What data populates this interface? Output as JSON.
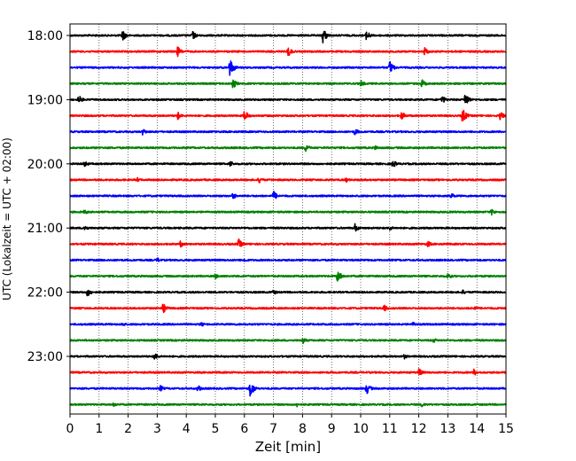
{
  "chart_data": {
    "type": "line",
    "title": "",
    "xlabel": "Zeit  [min]",
    "ylabel": "UTC (Lokalzeit = UTC + 02:00)",
    "xlim": [
      0,
      15
    ],
    "xticks": [
      0,
      1,
      2,
      3,
      4,
      5,
      6,
      7,
      8,
      9,
      10,
      11,
      12,
      13,
      14,
      15
    ],
    "ytick_labels": [
      "18:00",
      "19:00",
      "20:00",
      "21:00",
      "22:00",
      "23:00"
    ],
    "grid": "vertical dotted",
    "trace_interval_minutes": 15,
    "trace_colors": [
      "#000000",
      "#ff0000",
      "#0000ff",
      "#008000"
    ],
    "traces": [
      {
        "start": "18:00",
        "color": "#000000",
        "events": [
          [
            1.8,
            7
          ],
          [
            4.2,
            6
          ],
          [
            8.7,
            9
          ],
          [
            10.2,
            6
          ]
        ]
      },
      {
        "start": "18:15",
        "color": "#ff0000",
        "events": [
          [
            3.7,
            6
          ],
          [
            7.5,
            6
          ],
          [
            12.2,
            5
          ]
        ]
      },
      {
        "start": "18:30",
        "color": "#0000ff",
        "events": [
          [
            5.5,
            11
          ],
          [
            11.0,
            8
          ]
        ]
      },
      {
        "start": "18:45",
        "color": "#008000",
        "events": [
          [
            5.6,
            6
          ],
          [
            10.0,
            4
          ],
          [
            12.1,
            5
          ]
        ]
      },
      {
        "start": "19:00",
        "color": "#000000",
        "events": [
          [
            0.3,
            5
          ],
          [
            12.8,
            5
          ],
          [
            13.6,
            9
          ]
        ]
      },
      {
        "start": "19:15",
        "color": "#ff0000",
        "events": [
          [
            3.7,
            5
          ],
          [
            6.0,
            7
          ],
          [
            11.4,
            5
          ],
          [
            13.5,
            9
          ],
          [
            14.8,
            5
          ]
        ]
      },
      {
        "start": "19:30",
        "color": "#0000ff",
        "events": [
          [
            2.5,
            4
          ],
          [
            9.8,
            4
          ]
        ]
      },
      {
        "start": "19:45",
        "color": "#008000",
        "events": [
          [
            8.1,
            5
          ],
          [
            10.5,
            3
          ]
        ]
      },
      {
        "start": "20:00",
        "color": "#000000",
        "events": [
          [
            0.5,
            4
          ],
          [
            5.5,
            4
          ],
          [
            11.1,
            5
          ]
        ]
      },
      {
        "start": "20:15",
        "color": "#ff0000",
        "events": [
          [
            2.3,
            3
          ],
          [
            6.5,
            4
          ],
          [
            9.5,
            3
          ]
        ]
      },
      {
        "start": "20:30",
        "color": "#0000ff",
        "events": [
          [
            5.6,
            4
          ],
          [
            7.0,
            6
          ],
          [
            13.1,
            4
          ]
        ]
      },
      {
        "start": "20:45",
        "color": "#008000",
        "events": [
          [
            0.5,
            3
          ],
          [
            14.5,
            4
          ]
        ]
      },
      {
        "start": "21:00",
        "color": "#000000",
        "events": [
          [
            0.5,
            4
          ],
          [
            9.8,
            5
          ],
          [
            11.0,
            3
          ]
        ]
      },
      {
        "start": "21:15",
        "color": "#ff0000",
        "events": [
          [
            3.8,
            4
          ],
          [
            5.8,
            6
          ],
          [
            12.3,
            4
          ]
        ]
      },
      {
        "start": "21:30",
        "color": "#0000ff",
        "events": [
          [
            3.0,
            3
          ],
          [
            6.0,
            3
          ]
        ]
      },
      {
        "start": "21:45",
        "color": "#008000",
        "events": [
          [
            5.0,
            3
          ],
          [
            9.2,
            8
          ],
          [
            13.0,
            4
          ]
        ]
      },
      {
        "start": "22:00",
        "color": "#000000",
        "events": [
          [
            0.6,
            6
          ],
          [
            7.0,
            3
          ],
          [
            13.5,
            3
          ]
        ]
      },
      {
        "start": "22:15",
        "color": "#ff0000",
        "events": [
          [
            3.2,
            6
          ],
          [
            10.8,
            4
          ],
          [
            13.9,
            3
          ]
        ]
      },
      {
        "start": "22:30",
        "color": "#0000ff",
        "events": [
          [
            1.8,
            3
          ],
          [
            4.5,
            3
          ],
          [
            11.8,
            3
          ]
        ]
      },
      {
        "start": "22:45",
        "color": "#008000",
        "events": [
          [
            8.0,
            4
          ],
          [
            12.5,
            3
          ]
        ]
      },
      {
        "start": "23:00",
        "color": "#000000",
        "events": [
          [
            2.9,
            5
          ],
          [
            11.5,
            3
          ]
        ]
      },
      {
        "start": "23:15",
        "color": "#ff0000",
        "events": [
          [
            12.0,
            5
          ],
          [
            13.9,
            4
          ]
        ]
      },
      {
        "start": "23:30",
        "color": "#0000ff",
        "events": [
          [
            3.1,
            4
          ],
          [
            4.4,
            4
          ],
          [
            6.2,
            10
          ],
          [
            10.2,
            7
          ]
        ]
      },
      {
        "start": "23:45",
        "color": "#008000",
        "events": [
          [
            1.5,
            3
          ],
          [
            7.8,
            3
          ],
          [
            12.1,
            3
          ]
        ]
      }
    ]
  }
}
